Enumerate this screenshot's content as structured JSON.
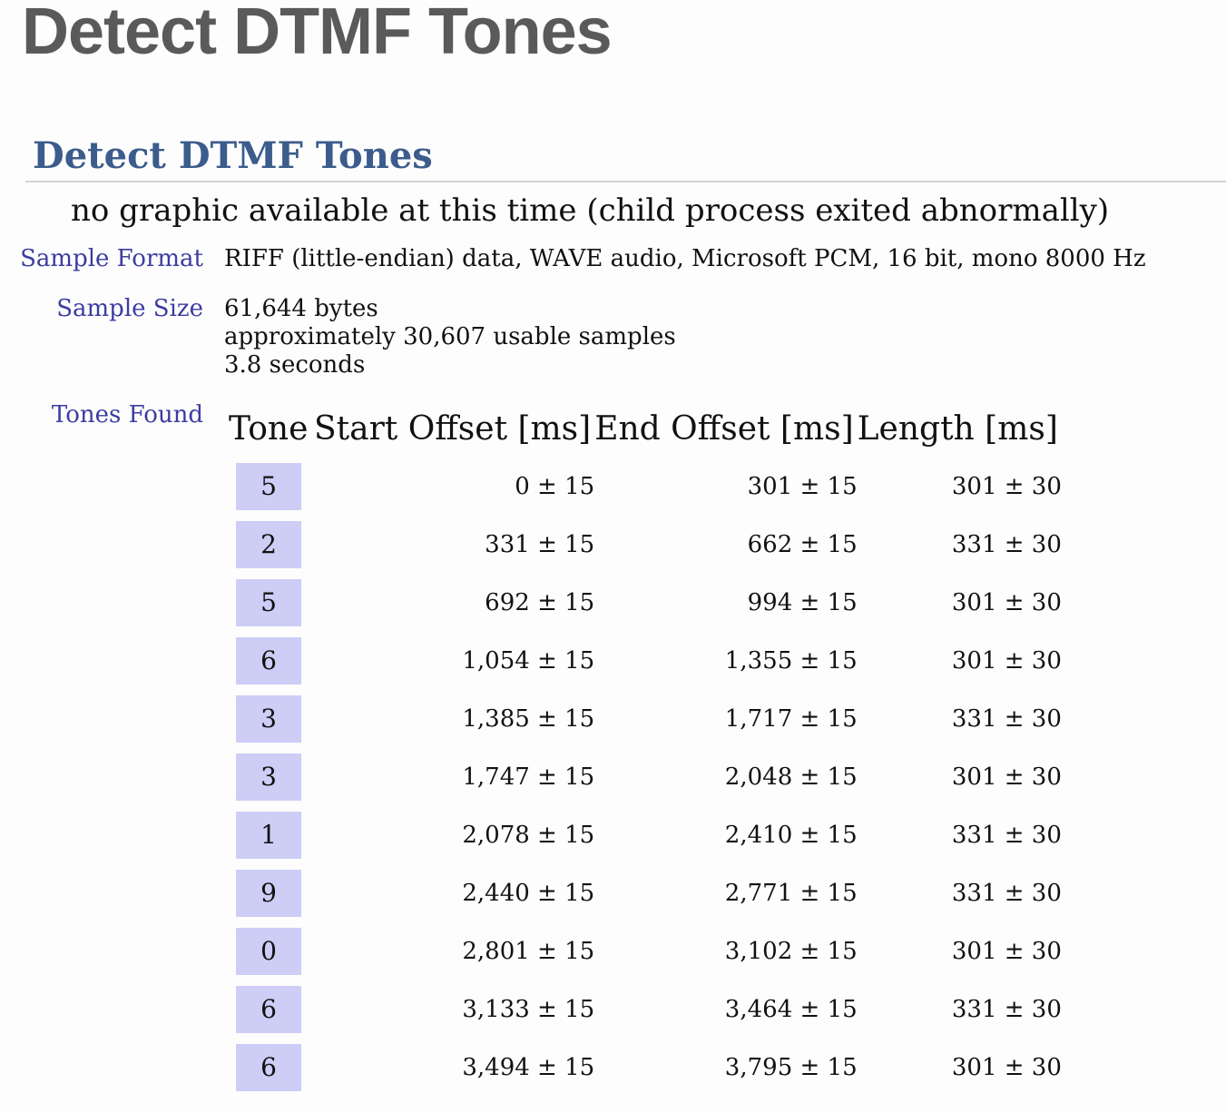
{
  "page": {
    "title": "Detect DTMF Tones",
    "section_title": "Detect DTMF Tones",
    "notice": "no graphic available at this time (child process exited abnormally)"
  },
  "sample_format": {
    "label": "Sample Format",
    "value": "RIFF (little-endian) data, WAVE audio, Microsoft PCM, 16 bit, mono 8000 Hz"
  },
  "sample_size": {
    "label": "Sample Size",
    "lines": [
      "61,644 bytes",
      "approximately 30,607 usable samples",
      "3.8 seconds"
    ]
  },
  "tones_found": {
    "label": "Tones Found",
    "headers": [
      "Tone",
      "Start Offset [ms]",
      "End Offset [ms]",
      "Length [ms]"
    ],
    "rows": [
      {
        "tone": "5",
        "start": "0 ± 15",
        "end": "301 ± 15",
        "length": "301 ± 30"
      },
      {
        "tone": "2",
        "start": "331 ± 15",
        "end": "662 ± 15",
        "length": "331 ± 30"
      },
      {
        "tone": "5",
        "start": "692 ± 15",
        "end": "994 ± 15",
        "length": "301 ± 30"
      },
      {
        "tone": "6",
        "start": "1,054 ± 15",
        "end": "1,355 ± 15",
        "length": "301 ± 30"
      },
      {
        "tone": "3",
        "start": "1,385 ± 15",
        "end": "1,717 ± 15",
        "length": "331 ± 30"
      },
      {
        "tone": "3",
        "start": "1,747 ± 15",
        "end": "2,048 ± 15",
        "length": "301 ± 30"
      },
      {
        "tone": "1",
        "start": "2,078 ± 15",
        "end": "2,410 ± 15",
        "length": "331 ± 30"
      },
      {
        "tone": "9",
        "start": "2,440 ± 15",
        "end": "2,771 ± 15",
        "length": "331 ± 30"
      },
      {
        "tone": "0",
        "start": "2,801 ± 15",
        "end": "3,102 ± 15",
        "length": "301 ± 30"
      },
      {
        "tone": "6",
        "start": "3,133 ± 15",
        "end": "3,464 ± 15",
        "length": "331 ± 30"
      },
      {
        "tone": "6",
        "start": "3,494 ± 15",
        "end": "3,795 ± 15",
        "length": "301 ± 30"
      }
    ]
  }
}
